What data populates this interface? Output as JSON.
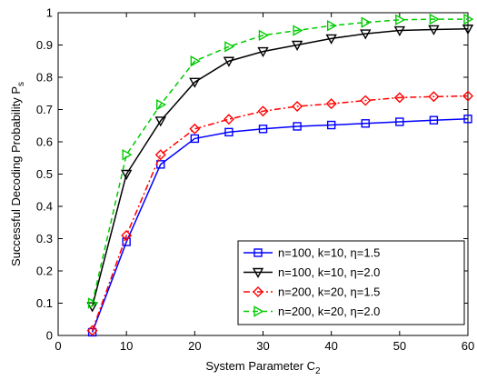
{
  "chart_data": {
    "type": "line",
    "xlabel": "System Parameter C",
    "xlabel_sub": "2",
    "ylabel": "Successful Decoding Probability P",
    "ylabel_sub": "s",
    "xlim": [
      0,
      60
    ],
    "ylim": [
      0,
      1
    ],
    "xticks": [
      0,
      10,
      20,
      30,
      40,
      50,
      60
    ],
    "yticks": [
      0,
      0.1,
      0.2,
      0.3,
      0.4,
      0.5,
      0.6,
      0.7,
      0.8,
      0.9,
      1
    ],
    "grid": false,
    "legend_position": "bottom-right",
    "x": [
      5,
      10,
      15,
      20,
      25,
      30,
      35,
      40,
      45,
      50,
      55,
      60
    ],
    "series": [
      {
        "name": "n=100, k=10, η=1.5",
        "color": "#0000ff",
        "marker": "square",
        "line": "solid",
        "values": [
          0.01,
          0.29,
          0.53,
          0.61,
          0.63,
          0.64,
          0.648,
          0.652,
          0.657,
          0.662,
          0.667,
          0.671
        ]
      },
      {
        "name": "n=100, k=10, η=2.0",
        "color": "#000000",
        "marker": "triangle-down",
        "line": "solid",
        "values": [
          0.09,
          0.5,
          0.665,
          0.785,
          0.85,
          0.88,
          0.9,
          0.92,
          0.935,
          0.945,
          0.948,
          0.95
        ]
      },
      {
        "name": "n=200, k=20, η=1.5",
        "color": "#ff0000",
        "marker": "diamond",
        "line": "dashdot",
        "values": [
          0.015,
          0.31,
          0.56,
          0.64,
          0.67,
          0.695,
          0.71,
          0.718,
          0.728,
          0.737,
          0.74,
          0.742
        ]
      },
      {
        "name": "n=200, k=20, η=2.0",
        "color": "#00cc00",
        "marker": "triangle-right",
        "line": "dashed",
        "values": [
          0.1,
          0.56,
          0.715,
          0.85,
          0.895,
          0.93,
          0.945,
          0.96,
          0.97,
          0.978,
          0.98,
          0.98
        ]
      }
    ]
  }
}
